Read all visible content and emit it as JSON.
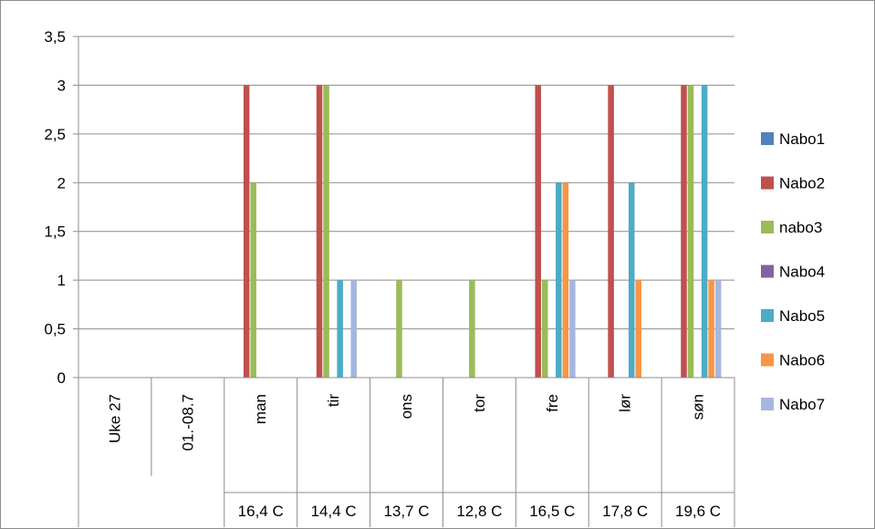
{
  "chart_data": {
    "type": "bar",
    "title": "",
    "xlabel": "",
    "ylabel": "",
    "ylim": [
      0,
      3.5
    ],
    "yticks": [
      "0",
      "0,5",
      "1",
      "1,5",
      "2",
      "2,5",
      "3",
      "3,5"
    ],
    "grid": true,
    "legend_position": "right",
    "categories": [
      "Uke 27",
      "01.-08.7",
      "man",
      "tir",
      "ons",
      "tor",
      "fre",
      "lør",
      "søn"
    ],
    "sub_labels": [
      "",
      "",
      "16,4 C",
      "14,4 C",
      "13,7 C",
      "12,8 C",
      "16,5 C",
      "17,8 C",
      "19,6 C"
    ],
    "series": [
      {
        "name": "Nabo1",
        "color": "#4f81bd",
        "values": [
          0,
          0,
          0,
          0,
          0,
          0,
          0,
          0,
          0
        ]
      },
      {
        "name": "Nabo2",
        "color": "#c0504d",
        "values": [
          0,
          0,
          3,
          3,
          0,
          0,
          3,
          3,
          3
        ]
      },
      {
        "name": "nabo3",
        "color": "#9bbb59",
        "values": [
          0,
          0,
          2,
          3,
          1,
          1,
          1,
          0,
          3
        ]
      },
      {
        "name": "Nabo4",
        "color": "#8064a2",
        "values": [
          0,
          0,
          0,
          0,
          0,
          0,
          0,
          0,
          0
        ]
      },
      {
        "name": "Nabo5",
        "color": "#4bacc6",
        "values": [
          0,
          0,
          0,
          1,
          0,
          0,
          2,
          2,
          3
        ]
      },
      {
        "name": "Nabo6",
        "color": "#f79646",
        "values": [
          0,
          0,
          0,
          0,
          0,
          0,
          2,
          1,
          1
        ]
      },
      {
        "name": "Nabo7",
        "color": "#a5b7de",
        "values": [
          0,
          0,
          0,
          1,
          0,
          0,
          1,
          0,
          1
        ]
      }
    ]
  }
}
